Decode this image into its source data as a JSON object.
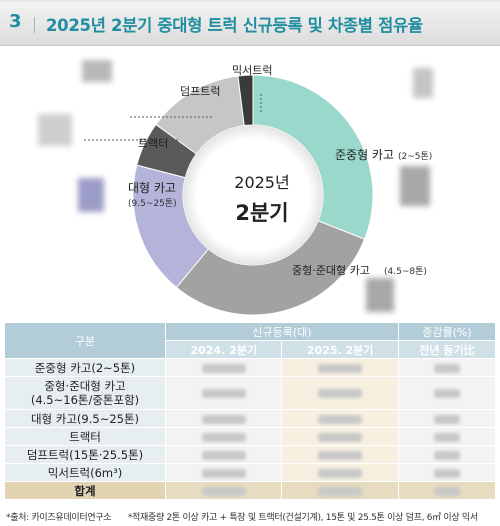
{
  "header": {
    "number": "3",
    "title": "2025년 2분기 중대형 트럭 신규등록 및 차종별 점유율"
  },
  "chart_data": {
    "type": "pie",
    "center_label": {
      "year": "2025년",
      "period": "2분기"
    },
    "slices": [
      {
        "label": "준중형 카고",
        "sublabel": "(2~5톤)",
        "value": 31,
        "color": "#9ad8cc"
      },
      {
        "label": "중형·준대형 카고",
        "sublabel": "(4.5~8톤)",
        "value": 30,
        "color": "#a2a2a2"
      },
      {
        "label": "대형 카고",
        "sublabel": "(9.5~25톤)",
        "value": 18,
        "color": "#b4b4da"
      },
      {
        "label": "트랙터",
        "sublabel": "",
        "value": 6,
        "color": "#5a5a5a"
      },
      {
        "label": "덤프트럭",
        "sublabel": "",
        "value": 13,
        "color": "#c6c6c6"
      },
      {
        "label": "믹서트럭",
        "sublabel": "",
        "value": 2,
        "color": "#3a3a3a"
      }
    ]
  },
  "table": {
    "col_category": "구분",
    "col_group_new": "신규등록(대)",
    "col_group_change": "증감률(%)",
    "col_2024": "2024. 2분기",
    "col_2025": "2025. 2분기",
    "col_yoy": "전년 동기比",
    "rows": [
      {
        "label": "준중형 카고(2~5톤)"
      },
      {
        "label": "중형·준대형 카고",
        "label2": "(4.5~16톤/중톤포함)"
      },
      {
        "label": "대형 카고(9.5~25톤)"
      },
      {
        "label": "트랙터"
      },
      {
        "label": "덤프트럭(15톤·25.5톤)"
      },
      {
        "label": "믹서트럭(6m³)"
      }
    ],
    "total_label": "합계"
  },
  "footer": {
    "source": "*출처: 카이즈유데이터연구소",
    "note": "*적재중량 2톤 이상 카고 + 특장 및 트랙터(건설기계), 15톤 및 25.5톤 이상 덤프, 6㎥ 이상 믹서"
  }
}
